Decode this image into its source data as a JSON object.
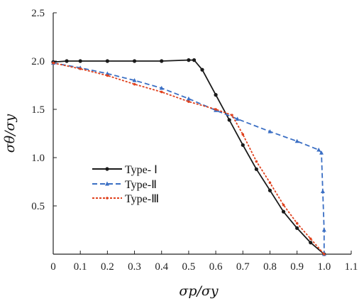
{
  "chart_data": {
    "type": "line",
    "title": "",
    "xlabel": "σp/σy",
    "ylabel": "σθ/σy",
    "xlim": [
      0,
      1.1
    ],
    "ylim": [
      0,
      2.5
    ],
    "x_ticks": [
      "0",
      "0.1",
      "0.2",
      "0.3",
      "0.4",
      "0.5",
      "0.6",
      "0.7",
      "0.8",
      "0.9",
      "1.0",
      "1.1"
    ],
    "y_ticks": [
      "0.5",
      "1.0",
      "1.5",
      "2.0",
      "2.5"
    ],
    "grid": false,
    "legend_position": "lower-left",
    "series": [
      {
        "name": "Type- Ⅰ",
        "color": "#1a1a1a",
        "dash": "solid",
        "marker": "circle",
        "points": [
          [
            0,
            1.99
          ],
          [
            0.05,
            2.0
          ],
          [
            0.1,
            2.0
          ],
          [
            0.2,
            2.0
          ],
          [
            0.3,
            2.0
          ],
          [
            0.4,
            2.0
          ],
          [
            0.5,
            2.01
          ],
          [
            0.52,
            2.01
          ],
          [
            0.55,
            1.91
          ],
          [
            0.6,
            1.65
          ],
          [
            0.65,
            1.39
          ],
          [
            0.7,
            1.13
          ],
          [
            0.75,
            0.88
          ],
          [
            0.8,
            0.66
          ],
          [
            0.85,
            0.44
          ],
          [
            0.9,
            0.27
          ],
          [
            0.95,
            0.12
          ],
          [
            1.0,
            0.0
          ]
        ]
      },
      {
        "name": "Type-Ⅱ",
        "color": "#3b6fc4",
        "dash": "dashed",
        "marker": "triangle",
        "points": [
          [
            0,
            1.98
          ],
          [
            0.1,
            1.93
          ],
          [
            0.2,
            1.87
          ],
          [
            0.3,
            1.8
          ],
          [
            0.4,
            1.72
          ],
          [
            0.5,
            1.61
          ],
          [
            0.6,
            1.49
          ],
          [
            0.68,
            1.4
          ],
          [
            0.8,
            1.27
          ],
          [
            0.9,
            1.17
          ],
          [
            0.98,
            1.08
          ],
          [
            0.99,
            1.05
          ],
          [
            0.995,
            0.65
          ],
          [
            1.0,
            0.25
          ],
          [
            1.0,
            0.0
          ]
        ]
      },
      {
        "name": "Type-Ⅲ",
        "color": "#e0421e",
        "dash": "short-dash",
        "marker": "dot",
        "points": [
          [
            0,
            1.98
          ],
          [
            0.1,
            1.92
          ],
          [
            0.2,
            1.85
          ],
          [
            0.3,
            1.76
          ],
          [
            0.4,
            1.68
          ],
          [
            0.5,
            1.58
          ],
          [
            0.6,
            1.5
          ],
          [
            0.66,
            1.44
          ],
          [
            0.7,
            1.24
          ],
          [
            0.75,
            0.96
          ],
          [
            0.8,
            0.74
          ],
          [
            0.85,
            0.51
          ],
          [
            0.9,
            0.32
          ],
          [
            0.95,
            0.16
          ],
          [
            1.0,
            0.0
          ]
        ]
      }
    ]
  }
}
